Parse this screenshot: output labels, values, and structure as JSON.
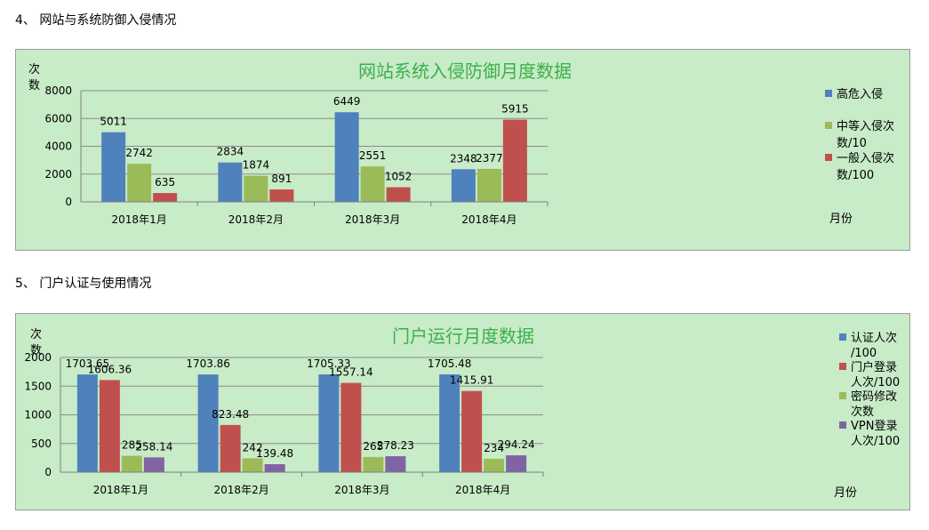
{
  "sections": {
    "s1": "4、 网站与系统防御入侵情况",
    "s2": "5、 门户认证与使用情况"
  },
  "chart_data": [
    {
      "type": "bar",
      "title": "网站系统入侵防御月度数据",
      "ylabel": [
        "次",
        "数"
      ],
      "xlabel": "月份",
      "categories": [
        "2018年1月",
        "2018年2月",
        "2018年3月",
        "2018年4月"
      ],
      "ylim": [
        0,
        8000
      ],
      "yticks": [
        0,
        2000,
        4000,
        6000,
        8000
      ],
      "grid": true,
      "legend_position": "right",
      "series": [
        {
          "name": [
            "高危入侵"
          ],
          "color": "#4f81bd",
          "values": [
            5011,
            2834,
            6449,
            2348
          ]
        },
        {
          "name": [
            "中等入侵次",
            "数/10"
          ],
          "color": "#9bbb59",
          "values": [
            2742,
            1874,
            2551,
            2377
          ]
        },
        {
          "name": [
            "一般入侵次",
            "数/100"
          ],
          "color": "#c0504d",
          "values": [
            635,
            891,
            1052,
            5915
          ]
        }
      ]
    },
    {
      "type": "bar",
      "title": "门户运行月度数据",
      "ylabel": [
        "次",
        "数"
      ],
      "xlabel": "月份",
      "categories": [
        "2018年1月",
        "2018年2月",
        "2018年3月",
        "2018年4月"
      ],
      "ylim": [
        0,
        2000
      ],
      "yticks": [
        0,
        500,
        1000,
        1500,
        2000
      ],
      "grid": true,
      "legend_position": "right",
      "series": [
        {
          "name": [
            "认证人次",
            "/100"
          ],
          "color": "#4f81bd",
          "values": [
            1703.65,
            1703.86,
            1705.33,
            1705.48
          ]
        },
        {
          "name": [
            "门户登录",
            "人次/100"
          ],
          "color": "#c0504d",
          "values": [
            1606.36,
            823.48,
            1557.14,
            1415.91
          ]
        },
        {
          "name": [
            "密码修改",
            "次数"
          ],
          "color": "#9bbb59",
          "values": [
            285,
            242,
            265,
            234
          ]
        },
        {
          "name": [
            "VPN登录",
            "人次/100"
          ],
          "color": "#8064a2",
          "values": [
            258.14,
            139.48,
            278.23,
            294.24
          ]
        }
      ]
    }
  ]
}
